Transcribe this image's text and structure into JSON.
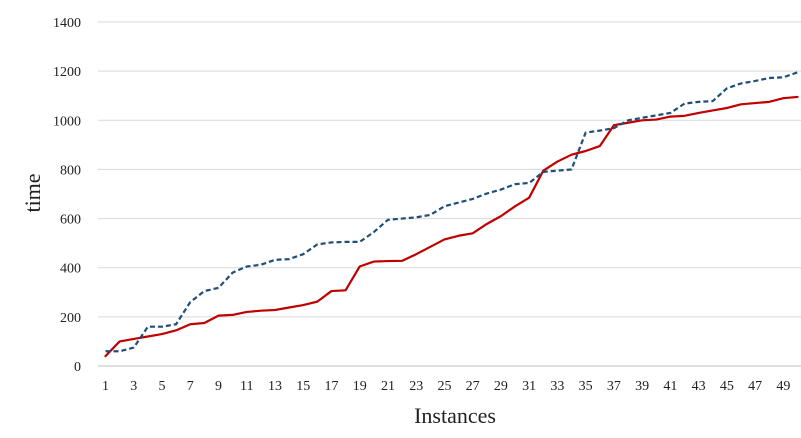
{
  "chart_data": {
    "type": "line",
    "title": "",
    "xlabel": "Instances",
    "ylabel": "time",
    "ylim": [
      0,
      1400
    ],
    "yticks": [
      0,
      200,
      400,
      600,
      800,
      1000,
      1200,
      1400
    ],
    "xtick_labels": [
      "1",
      "3",
      "5",
      "7",
      "9",
      "11",
      "13",
      "15",
      "17",
      "19",
      "21",
      "23",
      "25",
      "27",
      "29",
      "31",
      "33",
      "35",
      "37",
      "39",
      "41",
      "43",
      "45",
      "47",
      "49"
    ],
    "grid": true,
    "legend": "none",
    "x": [
      1,
      2,
      3,
      4,
      5,
      6,
      7,
      8,
      9,
      10,
      11,
      12,
      13,
      14,
      15,
      16,
      17,
      18,
      19,
      20,
      21,
      22,
      23,
      24,
      25,
      26,
      27,
      28,
      29,
      30,
      31,
      32,
      33,
      34,
      35,
      36,
      37,
      38,
      39,
      40,
      41,
      42,
      43,
      44,
      45,
      46,
      47,
      48,
      49,
      50
    ],
    "series": [
      {
        "color": "#c00000",
        "line_style": "solid",
        "values": [
          40,
          100,
          110,
          120,
          130,
          145,
          170,
          175,
          205,
          208,
          220,
          225,
          228,
          238,
          248,
          262,
          305,
          308,
          405,
          425,
          427,
          428,
          455,
          485,
          515,
          530,
          540,
          578,
          610,
          650,
          685,
          795,
          832,
          860,
          875,
          895,
          980,
          990,
          1000,
          1003,
          1015,
          1018,
          1030,
          1040,
          1050,
          1065,
          1070,
          1075,
          1090,
          1095
        ]
      },
      {
        "color": "#1f4e79",
        "line_style": "dashed",
        "values": [
          60,
          60,
          75,
          160,
          160,
          170,
          260,
          305,
          318,
          380,
          405,
          412,
          432,
          435,
          455,
          495,
          503,
          505,
          505,
          545,
          595,
          600,
          605,
          615,
          650,
          665,
          680,
          702,
          718,
          740,
          745,
          790,
          795,
          800,
          950,
          958,
          968,
          1000,
          1010,
          1020,
          1030,
          1068,
          1075,
          1078,
          1130,
          1150,
          1160,
          1172,
          1175,
          1195
        ]
      }
    ]
  }
}
